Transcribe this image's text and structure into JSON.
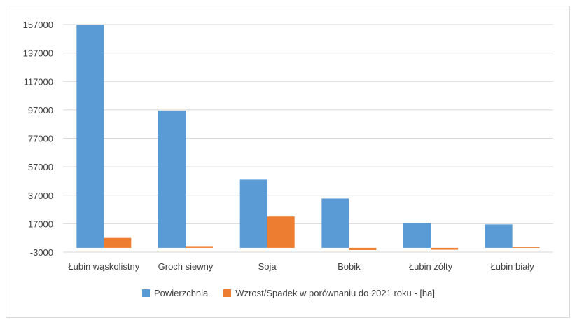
{
  "chart_data": {
    "type": "bar",
    "categories": [
      "Łubin wąskolistny",
      "Groch siewny",
      "Soja",
      "Bobik",
      "Łubin żółty",
      "Łubin biały"
    ],
    "series": [
      {
        "name": "Powierzchnia",
        "color": "#5b9bd5",
        "values": [
          157000,
          96500,
          48000,
          34700,
          17500,
          16500
        ]
      },
      {
        "name": "Wzrost/Spadek w porównaniu do 2021 roku - [ha]",
        "color": "#ed7d31",
        "values": [
          7000,
          1200,
          22000,
          -1500,
          -1300,
          800
        ]
      }
    ],
    "y_ticks": [
      -3000,
      17000,
      37000,
      57000,
      77000,
      97000,
      117000,
      137000,
      157000
    ],
    "ylim": [
      -3000,
      157000
    ],
    "grid": true,
    "legend_position": "bottom"
  }
}
